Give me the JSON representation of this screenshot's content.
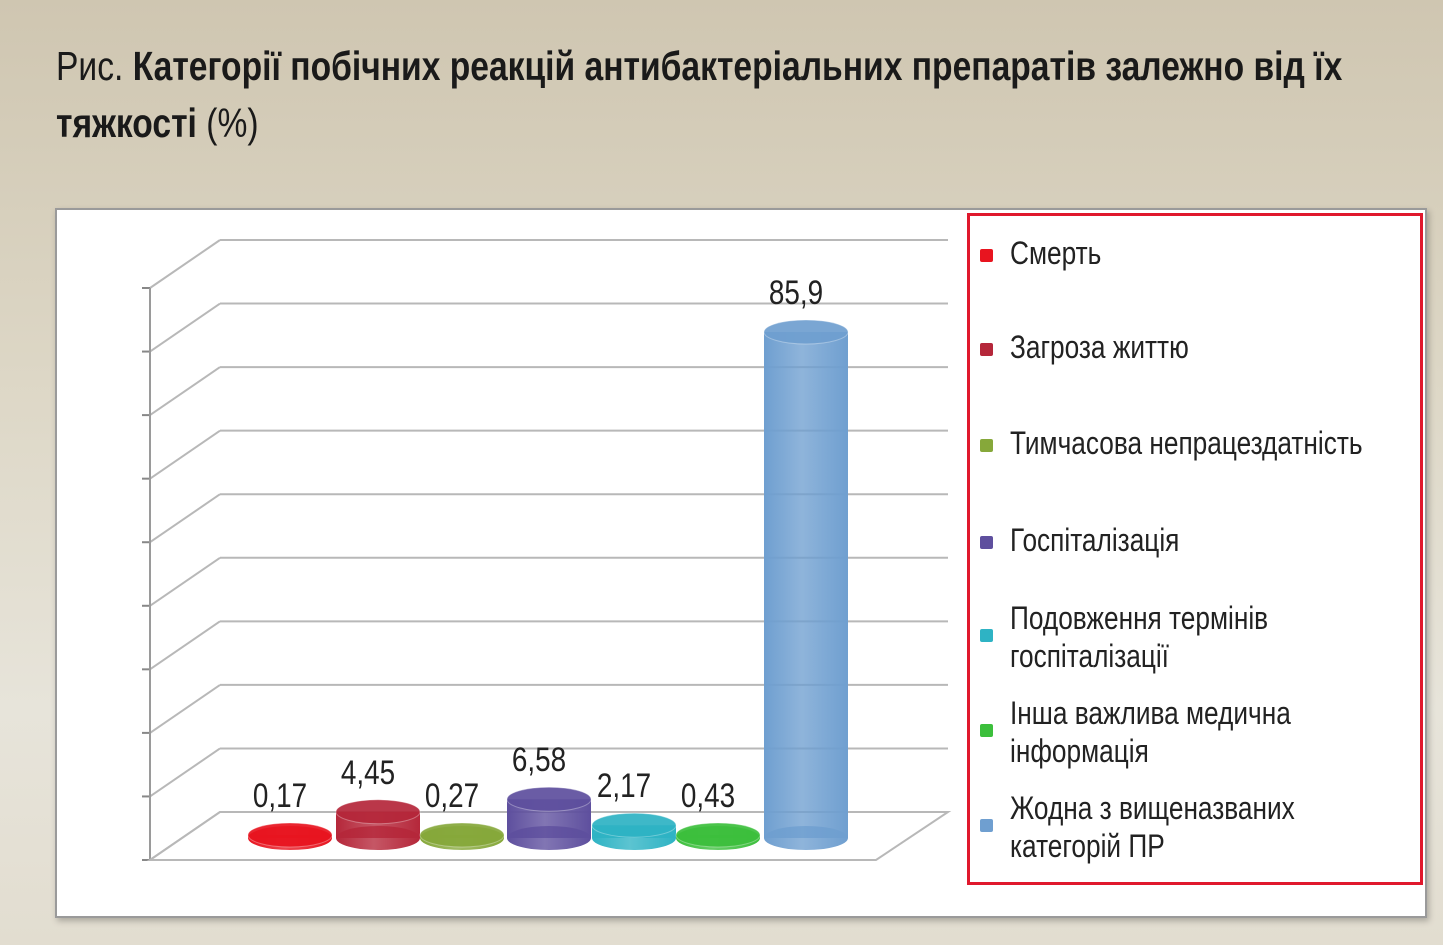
{
  "title": {
    "lead": "Рис.",
    "main": "Категорії побічних реакцій антибактеріальних препаратів залежно від їх тяжкості",
    "unit": "(%)"
  },
  "chart_data": {
    "type": "bar",
    "style": "3d-cylinder",
    "categories": [
      "Смерть",
      "Загроза життю",
      "Тимчасова непрацездатність",
      "Госпіталізація",
      "Подовження термінів госпіталізації",
      "Інша важлива медична інформація",
      "Жодна з вищеназваних категорій ПР"
    ],
    "values": [
      0.17,
      4.45,
      0.27,
      6.58,
      2.17,
      0.43,
      85.9
    ],
    "data_labels": [
      "0,17",
      "4,45",
      "0,27",
      "6,58",
      "2,17",
      "0,43",
      "85,9"
    ],
    "colors": [
      "#e8141f",
      "#b5273a",
      "#86a83a",
      "#5e4f9e",
      "#2eb3c4",
      "#3cbf3c",
      "#6f9fd0"
    ],
    "ylim": [
      0,
      90
    ],
    "grid": true,
    "legend": {
      "position": "right",
      "items": [
        {
          "label": "Смерть"
        },
        {
          "label": "Загроза життю"
        },
        {
          "label": "Тимчасова непрацездатність"
        },
        {
          "label": "Госпіталізація"
        },
        {
          "label": "Подовження термінів госпіталізації"
        },
        {
          "label": "Інша важлива медична інформація"
        },
        {
          "label": "Жодна з вищеназваних категорій ПР"
        }
      ]
    }
  }
}
